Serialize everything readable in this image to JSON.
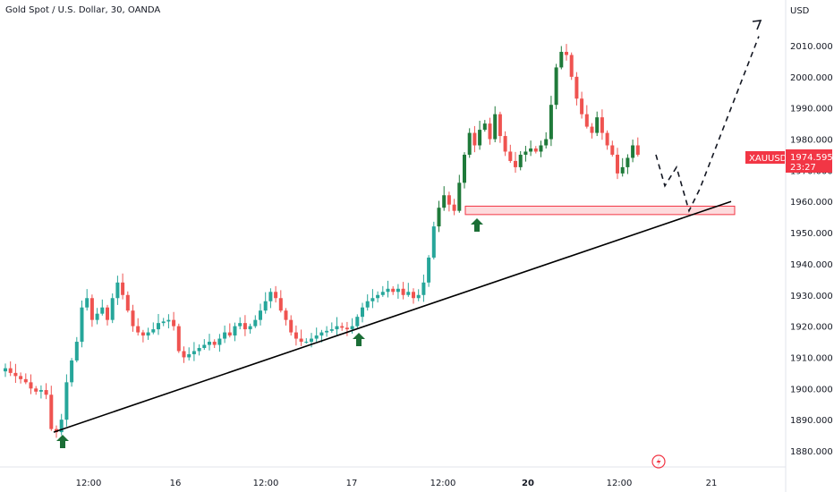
{
  "chart_data": {
    "type": "candlestick",
    "title": "Gold Spot / U.S. Dollar, 30, OANDA",
    "currency": "USD",
    "y_range": [
      1875,
      2018
    ],
    "y_ticks": [
      1880,
      1890,
      1900,
      1910,
      1920,
      1930,
      1940,
      1950,
      1960,
      1970,
      1980,
      1990,
      2000,
      2010
    ],
    "x_tick_labels": [
      {
        "label": "12:00",
        "bold": false
      },
      {
        "label": "16",
        "bold": false
      },
      {
        "label": "12:00",
        "bold": false
      },
      {
        "label": "17",
        "bold": false
      },
      {
        "label": "12:00",
        "bold": false
      },
      {
        "label": "20",
        "bold": true
      },
      {
        "label": "12:00",
        "bold": false
      },
      {
        "label": "21",
        "bold": false
      }
    ],
    "colors": {
      "up": "#26a69a",
      "up_dark": "#1f7a3a",
      "down": "#ef5350",
      "zone": "#f23645",
      "trend": "#000000",
      "arrow": "#1b6e36",
      "tag_bg": "#f23645"
    },
    "price_path": [
      1905.5,
      1906.5,
      1905,
      1904,
      1903,
      1902,
      1900,
      1899,
      1899.5,
      1898,
      1887,
      1886,
      1890,
      1902,
      1909,
      1915,
      1926,
      1929,
      1922,
      1924,
      1926,
      1922,
      1929,
      1934,
      1930,
      1925,
      1920,
      1918,
      1917,
      1918,
      1919,
      1921,
      1921.5,
      1922,
      1920,
      1912,
      1910,
      1911,
      1912,
      1913,
      1914,
      1915,
      1914,
      1916,
      1918,
      1917,
      1920,
      1921,
      1919,
      1920,
      1922,
      1925,
      1928,
      1931,
      1929,
      1925,
      1922,
      1918,
      1916,
      1915,
      1915,
      1916,
      1917,
      1918,
      1918.5,
      1919,
      1920,
      1919.5,
      1919,
      1920,
      1923,
      1926,
      1928,
      1929,
      1930,
      1931,
      1932,
      1931,
      1932,
      1930,
      1931,
      1929,
      1930,
      1934,
      1942,
      1952,
      1958,
      1962,
      1959,
      1957,
      1966,
      1975,
      1982,
      1978,
      1983,
      1985,
      1980,
      1988,
      1981,
      1976,
      1973,
      1971,
      1975,
      1976,
      1977,
      1976,
      1978,
      1980,
      1991,
      2003,
      2008,
      2007,
      2000,
      1993,
      1988,
      1984,
      1982,
      1987,
      1982,
      1978,
      1975,
      1969,
      1971,
      1974,
      1978,
      1975
    ],
    "projection": [
      1975,
      1965,
      1971,
      1957,
      1964,
      2013
    ],
    "resistance_zone": [
      1955.8,
      1958.5
    ],
    "trendline": [
      1886,
      1960
    ],
    "touch_arrows": [
      "12:00",
      "17",
      "20 (pre)"
    ],
    "last_price": {
      "symbol": "XAUUSD",
      "price": "1974.595",
      "countdown": "23:27"
    },
    "watermark": "lightning-icon"
  }
}
